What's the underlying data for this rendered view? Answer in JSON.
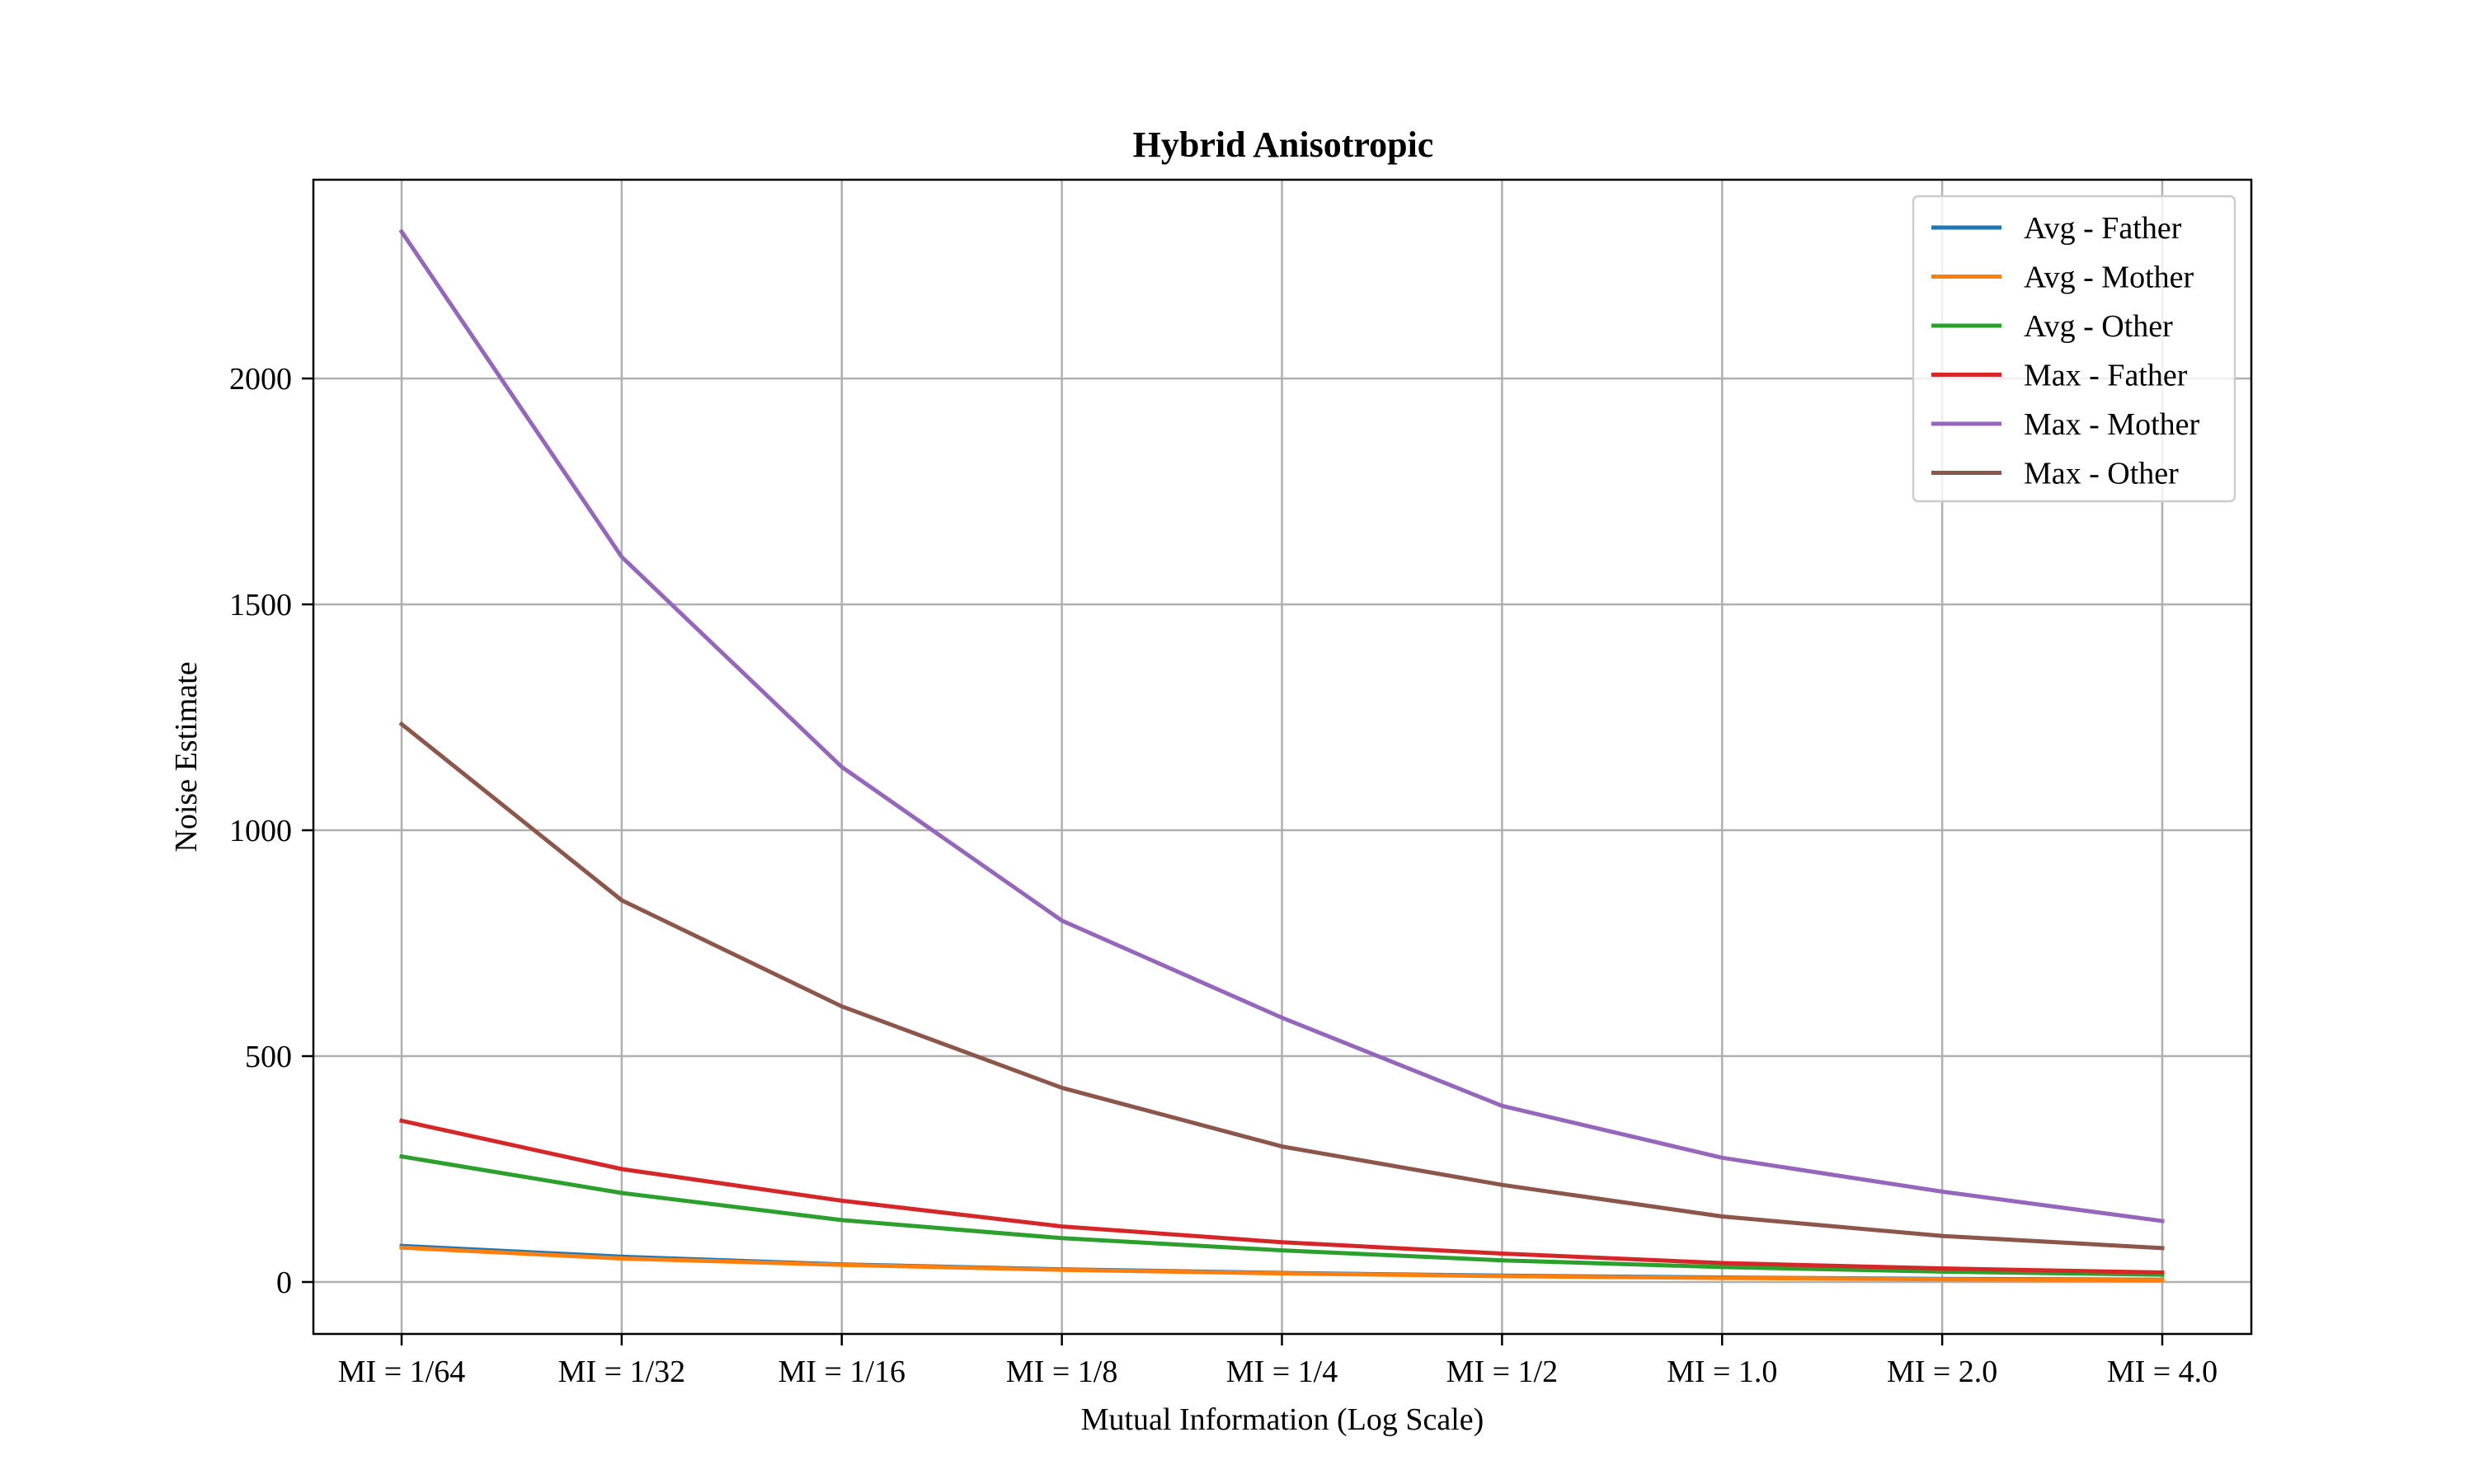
{
  "chart_data": {
    "type": "line",
    "title": "Hybrid Anisotropic",
    "xlabel": "Mutual Information (Log Scale)",
    "ylabel": "Noise Estimate",
    "categories": [
      "MI = 1/64",
      "MI = 1/32",
      "MI = 1/16",
      "MI = 1/8",
      "MI = 1/4",
      "MI = 1/2",
      "MI = 1.0",
      "MI = 2.0",
      "MI = 4.0"
    ],
    "ylim": [
      -115,
      2440
    ],
    "yticks": [
      0,
      500,
      1000,
      1500,
      2000
    ],
    "grid": true,
    "legend_position": "top-right",
    "series": [
      {
        "name": "Avg - Father",
        "color": "#1f77b4",
        "values": [
          80,
          56,
          39,
          28,
          20,
          14,
          10,
          7,
          5
        ]
      },
      {
        "name": "Avg - Mother",
        "color": "#ff7f0e",
        "values": [
          76,
          52,
          38,
          27,
          19,
          13,
          9,
          6,
          4
        ]
      },
      {
        "name": "Avg - Other",
        "color": "#2ca02c",
        "values": [
          278,
          197,
          137,
          97,
          70,
          48,
          33,
          23,
          16
        ]
      },
      {
        "name": "Max - Father",
        "color": "#d62728",
        "values": [
          357,
          250,
          180,
          123,
          88,
          63,
          42,
          30,
          21
        ]
      },
      {
        "name": "Max - Mother",
        "color": "#9467bd",
        "values": [
          2325,
          1605,
          1140,
          800,
          585,
          390,
          275,
          200,
          135
        ]
      },
      {
        "name": "Max - Other",
        "color": "#8c564b",
        "values": [
          1235,
          845,
          610,
          430,
          300,
          215,
          145,
          102,
          75
        ]
      }
    ]
  }
}
